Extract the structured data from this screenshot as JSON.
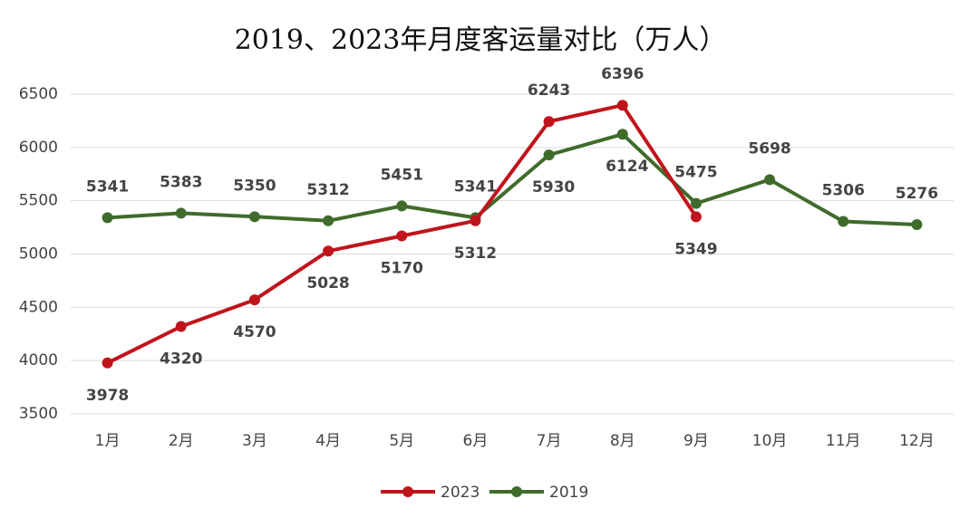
{
  "chart_data": {
    "type": "line",
    "title": "2019、2023年月度客运量对比（万人）",
    "categories": [
      "1月",
      "2月",
      "3月",
      "4月",
      "5月",
      "6月",
      "7月",
      "8月",
      "9月",
      "10月",
      "11月",
      "12月"
    ],
    "series": [
      {
        "name": "2023",
        "color": "#c0141c",
        "values": [
          3978,
          4320,
          4570,
          5028,
          5170,
          5312,
          6243,
          6396,
          5349,
          null,
          null,
          null
        ]
      },
      {
        "name": "2019",
        "color": "#3f6b2b",
        "values": [
          5341,
          5383,
          5350,
          5312,
          5451,
          5341,
          5930,
          6124,
          5475,
          5698,
          5306,
          5276
        ]
      }
    ],
    "ylim": [
      3500,
      6500
    ],
    "yticks": [
      3500,
      4000,
      4500,
      5000,
      5500,
      6000,
      6500
    ],
    "grid": true,
    "legend": "bottom"
  }
}
